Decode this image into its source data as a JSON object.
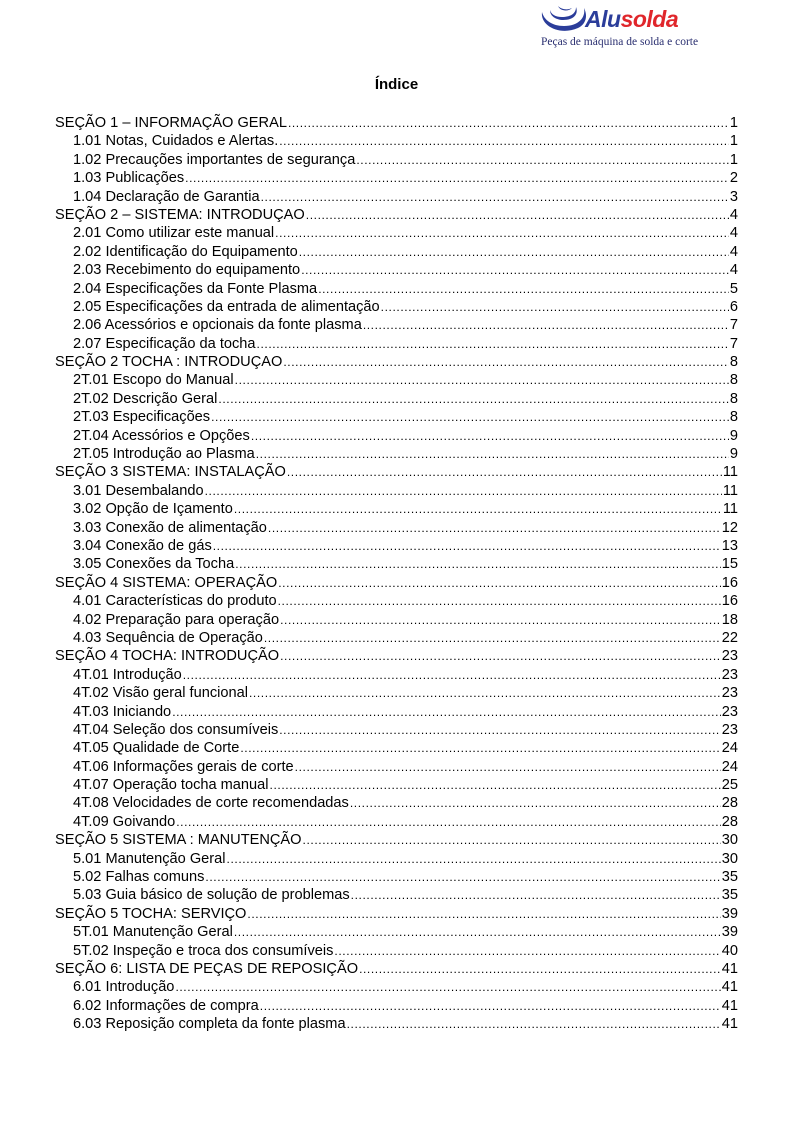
{
  "logo": {
    "brand_part1": "Alu",
    "brand_part2": "solda",
    "tagline": "Peças de máquina de solda e corte",
    "colors": {
      "blue": "#2b3d9a",
      "red": "#e0262b"
    }
  },
  "title": "Índice",
  "entries": [
    {
      "label": "SEÇÃO 1 – INFORMAÇÃO GERAL",
      "page": "1",
      "level": 1
    },
    {
      "label": "1.01 Notas, Cuidados e Alertas.",
      "page": "1",
      "level": 2
    },
    {
      "label": "1.02 Precauções importantes de segurança",
      "page": "1",
      "level": 2
    },
    {
      "label": "1.03 Publicações",
      "page": "2",
      "level": 2
    },
    {
      "label": "1.04 Declaração de Garantia",
      "page": "3",
      "level": 2
    },
    {
      "label": "SEÇÃO 2 – SISTEMA: INTRODUÇAO",
      "page": "4",
      "level": 1
    },
    {
      "label": "2.01 Como utilizar este manual",
      "page": "4",
      "level": 2
    },
    {
      "label": "2.02 Identificação do Equipamento",
      "page": "4",
      "level": 2
    },
    {
      "label": "2.03 Recebimento do equipamento",
      "page": "4",
      "level": 2
    },
    {
      "label": "2.04 Especificações da Fonte Plasma",
      "page": "5",
      "level": 2
    },
    {
      "label": "2.05 Especificações da entrada de alimentação",
      "page": "6",
      "level": 2
    },
    {
      "label": "2.06 Acessórios e opcionais da fonte plasma",
      "page": "7",
      "level": 2
    },
    {
      "label": "2.07 Especificação da tocha",
      "page": "7",
      "level": 2
    },
    {
      "label": "SEÇÃO 2 TOCHA : INTRODUÇAO",
      "page": "8",
      "level": 1
    },
    {
      "label": "2T.01 Escopo do Manual",
      "page": "8",
      "level": 2
    },
    {
      "label": "2T.02 Descrição Geral",
      "page": "8",
      "level": 2
    },
    {
      "label": "2T.03 Especificações",
      "page": "8",
      "level": 2
    },
    {
      "label": "2T.04 Acessórios e Opções",
      "page": "9",
      "level": 2
    },
    {
      "label": "2T.05 Introdução ao Plasma",
      "page": "9",
      "level": 2
    },
    {
      "label": "SEÇÃO 3 SISTEMA:  INSTALAÇÃO",
      "page": "11",
      "level": 1
    },
    {
      "label": "3.01 Desembalando",
      "page": "11",
      "level": 2
    },
    {
      "label": "3.02 Opção de Içamento",
      "page": "11",
      "level": 2
    },
    {
      "label": "3.03 Conexão de alimentação",
      "page": "12",
      "level": 2
    },
    {
      "label": "3.04 Conexão de gás",
      "page": "13",
      "level": 2
    },
    {
      "label": "3.05 Conexões da Tocha",
      "page": "15",
      "level": 2
    },
    {
      "label": "SEÇÃO 4 SISTEMA:  OPERAÇÃO",
      "page": "16",
      "level": 1
    },
    {
      "label": "4.01 Características do produto",
      "page": "16",
      "level": 2
    },
    {
      "label": "4.02 Preparação para operação",
      "page": "18",
      "level": 2
    },
    {
      "label": "4.03 Sequência de Operação",
      "page": "22",
      "level": 2
    },
    {
      "label": "SEÇÃO 4 TOCHA: INTRODUÇÃO",
      "page": "23",
      "level": 1
    },
    {
      "label": "4T.01 Introdução",
      "page": "23",
      "level": 2
    },
    {
      "label": "4T.02 Visão geral funcional",
      "page": "23",
      "level": 2
    },
    {
      "label": "4T.03 Iniciando",
      "page": "23",
      "level": 2
    },
    {
      "label": "4T.04 Seleção dos consumíveis",
      "page": "23",
      "level": 2
    },
    {
      "label": "4T.05 Qualidade de Corte",
      "page": "24",
      "level": 2
    },
    {
      "label": "4T.06 Informações gerais de corte",
      "page": "24",
      "level": 2
    },
    {
      "label": "4T.07 Operação tocha manual",
      "page": "25",
      "level": 2
    },
    {
      "label": "4T.08 Velocidades de corte recomendadas",
      "page": "28",
      "level": 2
    },
    {
      "label": "4T.09 Goivando",
      "page": "28",
      "level": 2
    },
    {
      "label": "SEÇÃO 5 SISTEMA : MANUTENÇÃO",
      "page": "30",
      "level": 1
    },
    {
      "label": "5.01 Manutenção Geral",
      "page": "30",
      "level": 2
    },
    {
      "label": "5.02 Falhas comuns",
      "page": "35",
      "level": 2
    },
    {
      "label": "5.03 Guia básico de solução de problemas",
      "page": "35",
      "level": 2
    },
    {
      "label": "SEÇÃO 5 TOCHA:  SERVIÇO",
      "page": "39",
      "level": 1
    },
    {
      "label": "5T.01 Manutenção Geral",
      "page": "39",
      "level": 2
    },
    {
      "label": "5T.02 Inspeção e troca dos consumíveis",
      "page": "40",
      "level": 2
    },
    {
      "label": "SEÇÃO 6: LISTA DE PEÇAS DE REPOSIÇÃO",
      "page": "41",
      "level": 1
    },
    {
      "label": "6.01 Introdução",
      "page": "41",
      "level": 2
    },
    {
      "label": "6.02 Informações de compra",
      "page": "41",
      "level": 2
    },
    {
      "label": "6.03 Reposição completa da fonte plasma",
      "page": "41",
      "level": 2
    }
  ]
}
